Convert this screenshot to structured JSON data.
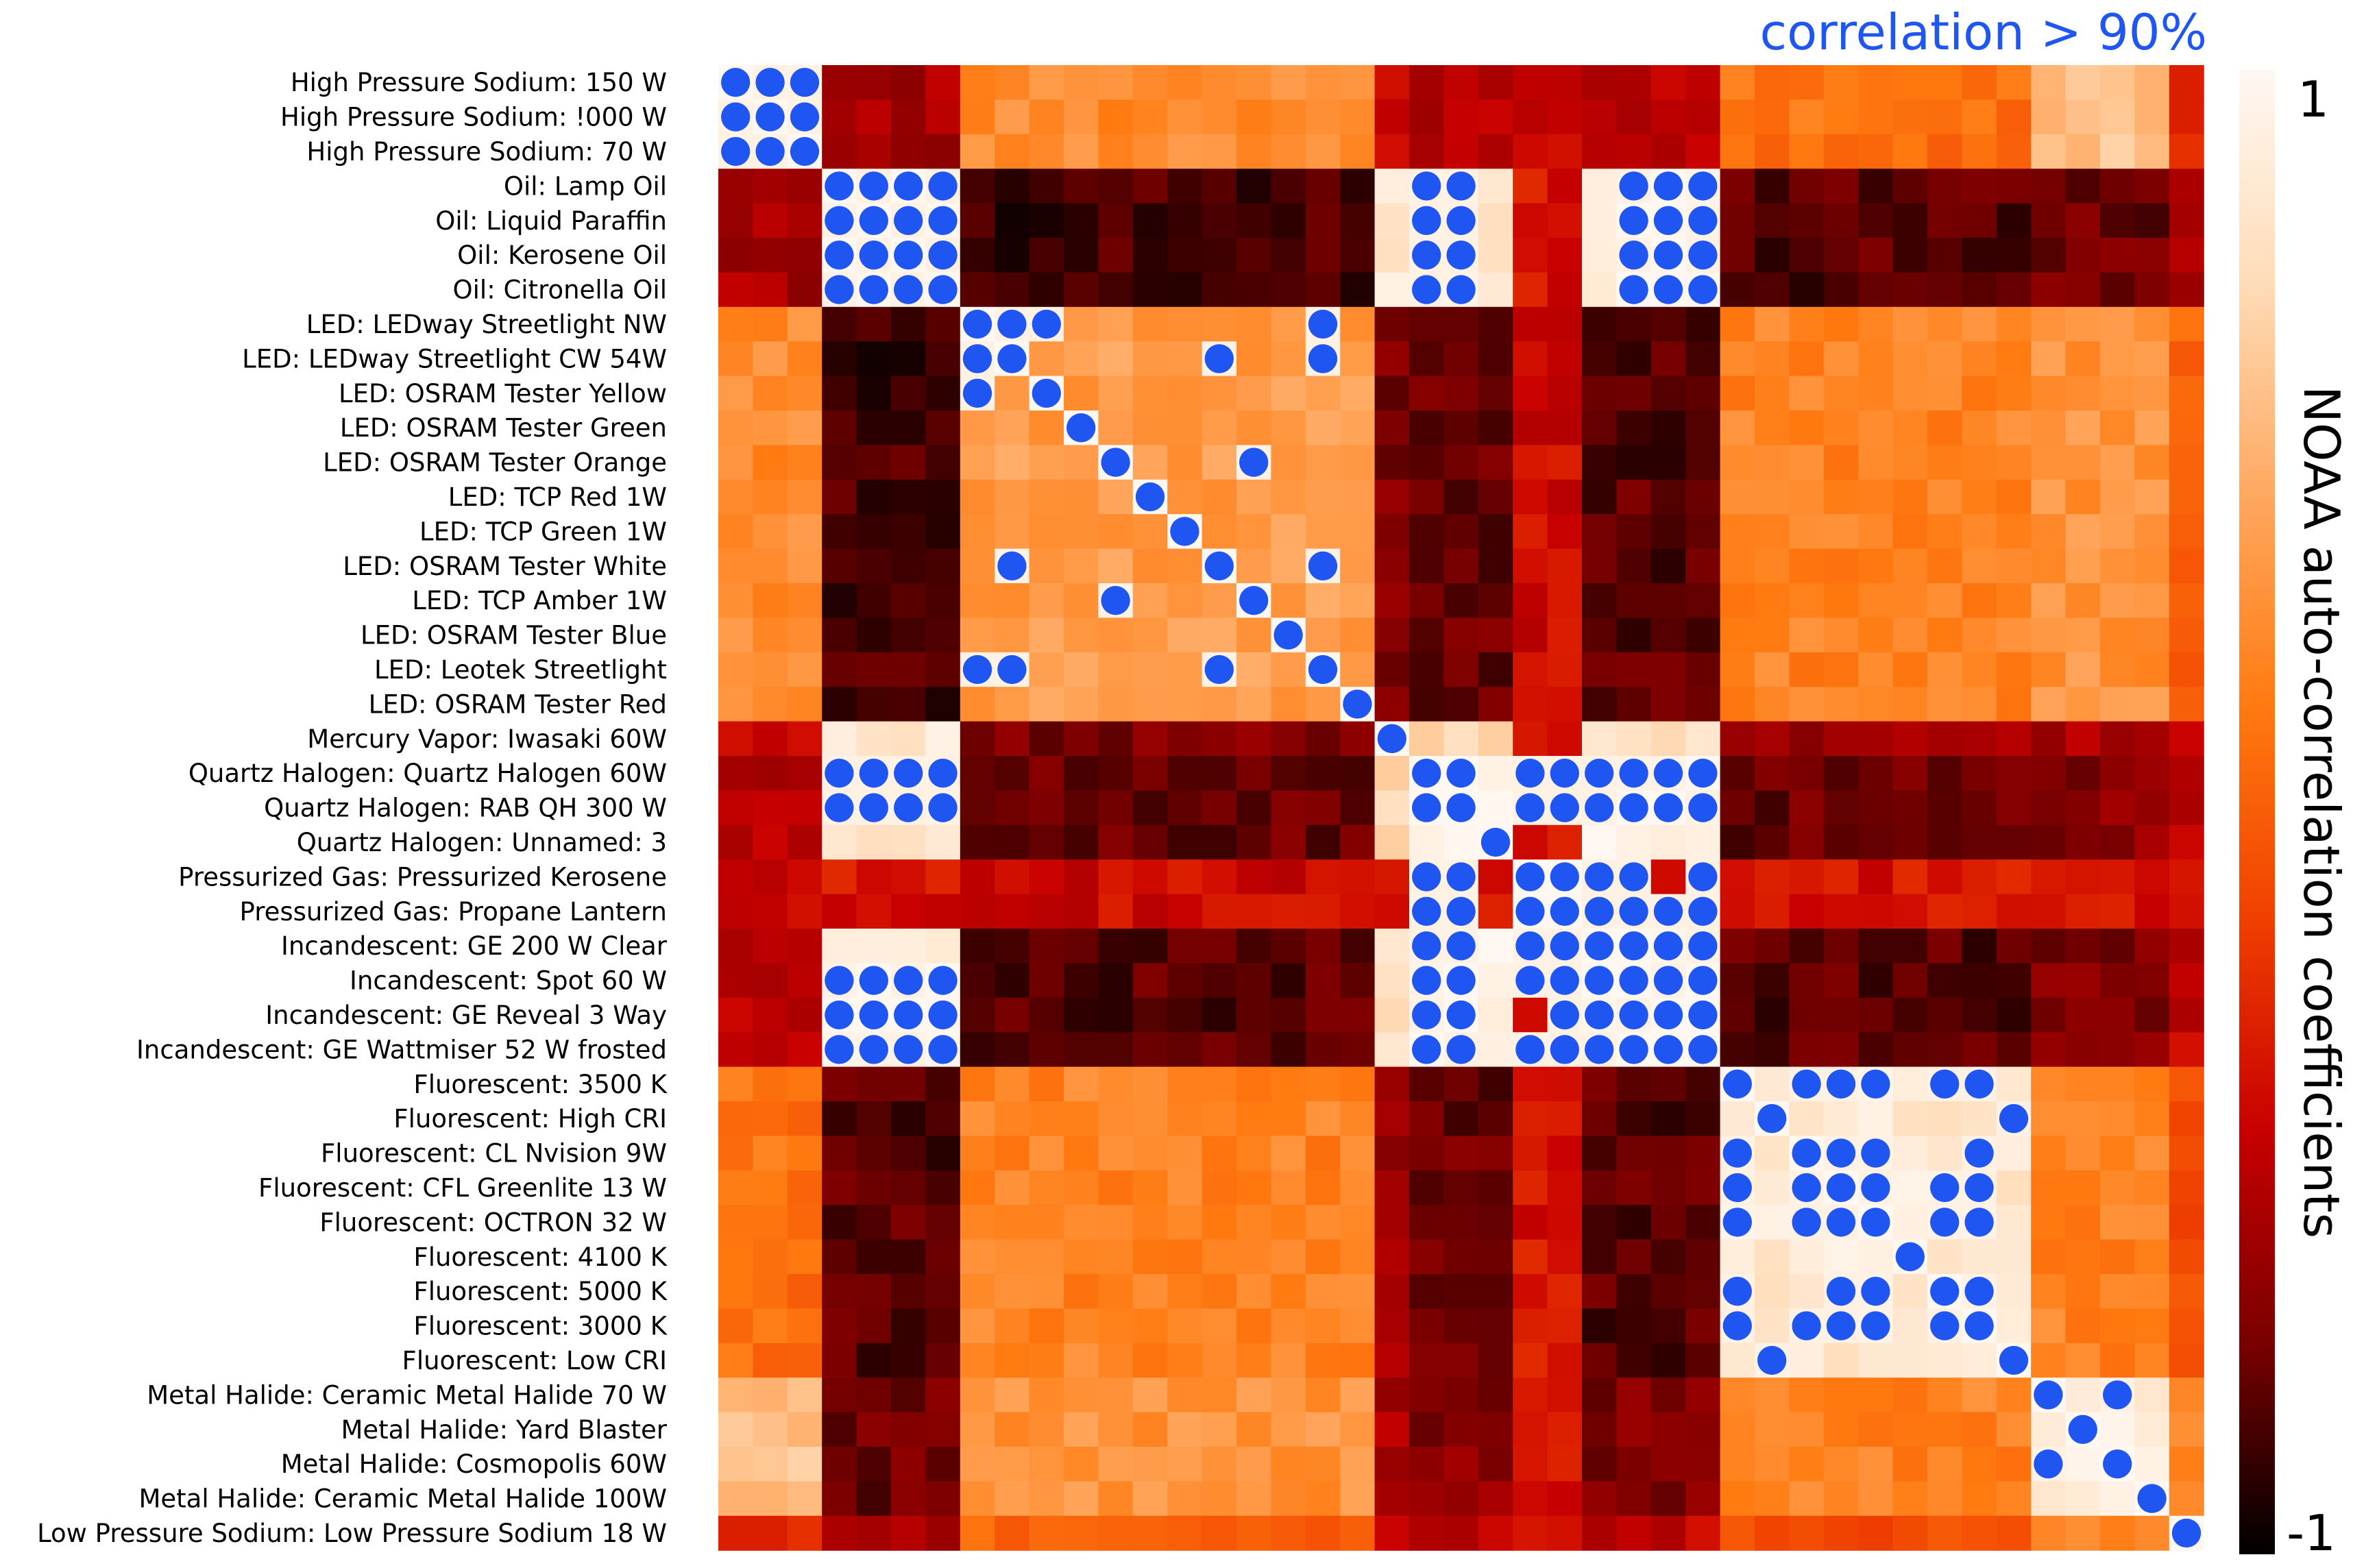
{
  "chart_data": {
    "type": "heatmap",
    "title": "correlation > 90%",
    "labels": [
      "High Pressure Sodium: 150 W",
      "High Pressure Sodium: !000 W",
      "High Pressure Sodium: 70 W",
      "Oil: Lamp Oil",
      "Oil: Liquid Paraffin",
      "Oil: Kerosene Oil",
      "Oil: Citronella Oil",
      "LED: LEDway Streetlight NW",
      "LED: LEDway Streetlight CW 54W",
      "LED: OSRAM Tester Yellow",
      "LED: OSRAM Tester Green",
      "LED: OSRAM Tester Orange",
      "LED: TCP Red 1W",
      "LED: TCP Green 1W",
      "LED: OSRAM Tester White",
      "LED: TCP Amber 1W",
      "LED: OSRAM Tester Blue",
      "LED: Leotek Streetlight",
      "LED: OSRAM Tester Red",
      "Mercury Vapor: Iwasaki 60W",
      "Quartz Halogen: Quartz Halogen 60W",
      "Quartz Halogen: RAB QH 300 W",
      "Quartz Halogen: Unnamed: 3",
      "Pressurized Gas: Pressurized Kerosene",
      "Pressurized Gas: Propane Lantern",
      "Incandescent: GE 200 W Clear",
      "Incandescent: Spot 60 W",
      "Incandescent: GE Reveal 3 Way",
      "Incandescent: GE Wattmiser 52 W frosted",
      "Fluorescent: 3500 K",
      "Fluorescent: High CRI",
      "Fluorescent: CL Nvision 9W",
      "Fluorescent: CFL Greenlite 13 W",
      "Fluorescent: OCTRON 32 W",
      "Fluorescent: 4100 K",
      "Fluorescent: 5000 K",
      "Fluorescent: 3000 K",
      "Fluorescent: Low CRI",
      "Metal Halide: Ceramic Metal Halide 70 W",
      "Metal Halide: Yard Blaster",
      "Metal Halide: Cosmopolis 60W",
      "Metal Halide: Ceramic Metal Halide 100W",
      "Low Pressure Sodium: Low Pressure Sodium 18 W"
    ],
    "group_sizes": [
      3,
      4,
      12,
      1,
      3,
      2,
      4,
      9,
      4,
      1
    ],
    "group_similarity": [
      [
        0.98,
        -0.55,
        0.25,
        -0.45,
        -0.5,
        -0.45,
        -0.5,
        0.1,
        0.55,
        -0.3
      ],
      [
        -0.55,
        0.98,
        -0.85,
        0.85,
        0.85,
        -0.35,
        0.95,
        -0.8,
        -0.75,
        -0.5
      ],
      [
        0.25,
        -0.85,
        0.35,
        -0.7,
        -0.75,
        -0.4,
        -0.8,
        0.2,
        0.3,
        0.0
      ],
      [
        -0.45,
        0.85,
        -0.7,
        1.0,
        0.7,
        -0.35,
        0.8,
        -0.6,
        -0.55,
        -0.4
      ],
      [
        -0.5,
        0.85,
        -0.75,
        0.7,
        0.98,
        -0.35,
        0.95,
        -0.75,
        -0.65,
        -0.45
      ],
      [
        -0.45,
        -0.35,
        -0.4,
        -0.35,
        -0.35,
        1.0,
        -0.35,
        -0.35,
        -0.35,
        -0.35
      ],
      [
        -0.5,
        0.95,
        -0.8,
        0.8,
        0.95,
        -0.35,
        0.98,
        -0.8,
        -0.7,
        -0.45
      ],
      [
        0.1,
        -0.8,
        0.2,
        -0.6,
        -0.75,
        -0.35,
        -0.8,
        0.85,
        0.2,
        -0.1
      ],
      [
        0.55,
        -0.75,
        0.3,
        -0.55,
        -0.65,
        -0.35,
        -0.7,
        0.2,
        0.85,
        0.2
      ],
      [
        -0.3,
        -0.5,
        0.0,
        -0.4,
        -0.45,
        -0.35,
        -0.45,
        -0.1,
        0.2,
        1.0
      ]
    ],
    "high_correlation_marks": [
      [
        0,
        0
      ],
      [
        0,
        1
      ],
      [
        0,
        2
      ],
      [
        1,
        0
      ],
      [
        1,
        1
      ],
      [
        1,
        2
      ],
      [
        2,
        0
      ],
      [
        2,
        1
      ],
      [
        2,
        2
      ],
      [
        3,
        3
      ],
      [
        3,
        4
      ],
      [
        3,
        5
      ],
      [
        3,
        6
      ],
      [
        4,
        3
      ],
      [
        4,
        4
      ],
      [
        4,
        5
      ],
      [
        4,
        6
      ],
      [
        5,
        3
      ],
      [
        5,
        4
      ],
      [
        5,
        5
      ],
      [
        5,
        6
      ],
      [
        6,
        3
      ],
      [
        6,
        4
      ],
      [
        6,
        5
      ],
      [
        6,
        6
      ],
      [
        3,
        20
      ],
      [
        3,
        21
      ],
      [
        4,
        20
      ],
      [
        4,
        21
      ],
      [
        5,
        20
      ],
      [
        5,
        21
      ],
      [
        6,
        20
      ],
      [
        6,
        21
      ],
      [
        3,
        26
      ],
      [
        3,
        27
      ],
      [
        3,
        28
      ],
      [
        4,
        26
      ],
      [
        4,
        27
      ],
      [
        4,
        28
      ],
      [
        5,
        26
      ],
      [
        5,
        27
      ],
      [
        5,
        28
      ],
      [
        6,
        26
      ],
      [
        6,
        27
      ],
      [
        6,
        28
      ],
      [
        20,
        3
      ],
      [
        20,
        4
      ],
      [
        20,
        5
      ],
      [
        20,
        6
      ],
      [
        21,
        3
      ],
      [
        21,
        4
      ],
      [
        21,
        5
      ],
      [
        21,
        6
      ],
      [
        26,
        3
      ],
      [
        26,
        4
      ],
      [
        26,
        5
      ],
      [
        26,
        6
      ],
      [
        27,
        3
      ],
      [
        27,
        4
      ],
      [
        27,
        5
      ],
      [
        27,
        6
      ],
      [
        28,
        3
      ],
      [
        28,
        4
      ],
      [
        28,
        5
      ],
      [
        28,
        6
      ],
      [
        7,
        7
      ],
      [
        7,
        8
      ],
      [
        7,
        9
      ],
      [
        7,
        17
      ],
      [
        8,
        7
      ],
      [
        8,
        8
      ],
      [
        8,
        14
      ],
      [
        8,
        17
      ],
      [
        9,
        7
      ],
      [
        9,
        9
      ],
      [
        10,
        10
      ],
      [
        11,
        11
      ],
      [
        11,
        15
      ],
      [
        12,
        12
      ],
      [
        13,
        13
      ],
      [
        14,
        8
      ],
      [
        14,
        14
      ],
      [
        14,
        17
      ],
      [
        15,
        11
      ],
      [
        15,
        15
      ],
      [
        16,
        16
      ],
      [
        17,
        7
      ],
      [
        17,
        8
      ],
      [
        17,
        14
      ],
      [
        17,
        17
      ],
      [
        18,
        18
      ],
      [
        19,
        19
      ],
      [
        20,
        20
      ],
      [
        20,
        21
      ],
      [
        20,
        23
      ],
      [
        20,
        24
      ],
      [
        20,
        25
      ],
      [
        20,
        26
      ],
      [
        20,
        27
      ],
      [
        20,
        28
      ],
      [
        21,
        20
      ],
      [
        21,
        21
      ],
      [
        21,
        23
      ],
      [
        21,
        24
      ],
      [
        21,
        25
      ],
      [
        21,
        26
      ],
      [
        21,
        27
      ],
      [
        21,
        28
      ],
      [
        22,
        22
      ],
      [
        23,
        20
      ],
      [
        23,
        21
      ],
      [
        23,
        23
      ],
      [
        23,
        24
      ],
      [
        23,
        25
      ],
      [
        23,
        26
      ],
      [
        23,
        28
      ],
      [
        24,
        20
      ],
      [
        24,
        21
      ],
      [
        24,
        23
      ],
      [
        24,
        24
      ],
      [
        24,
        25
      ],
      [
        24,
        26
      ],
      [
        24,
        27
      ],
      [
        24,
        28
      ],
      [
        25,
        20
      ],
      [
        25,
        21
      ],
      [
        25,
        23
      ],
      [
        25,
        24
      ],
      [
        25,
        25
      ],
      [
        25,
        26
      ],
      [
        25,
        27
      ],
      [
        25,
        28
      ],
      [
        26,
        20
      ],
      [
        26,
        21
      ],
      [
        26,
        23
      ],
      [
        26,
        24
      ],
      [
        26,
        25
      ],
      [
        26,
        26
      ],
      [
        26,
        27
      ],
      [
        26,
        28
      ],
      [
        27,
        20
      ],
      [
        27,
        21
      ],
      [
        27,
        24
      ],
      [
        27,
        25
      ],
      [
        27,
        26
      ],
      [
        27,
        27
      ],
      [
        27,
        28
      ],
      [
        28,
        20
      ],
      [
        28,
        21
      ],
      [
        28,
        23
      ],
      [
        28,
        24
      ],
      [
        28,
        25
      ],
      [
        28,
        26
      ],
      [
        28,
        27
      ],
      [
        28,
        28
      ],
      [
        29,
        29
      ],
      [
        29,
        31
      ],
      [
        29,
        32
      ],
      [
        29,
        33
      ],
      [
        29,
        35
      ],
      [
        29,
        36
      ],
      [
        30,
        30
      ],
      [
        30,
        37
      ],
      [
        31,
        29
      ],
      [
        31,
        31
      ],
      [
        31,
        32
      ],
      [
        31,
        33
      ],
      [
        31,
        36
      ],
      [
        32,
        29
      ],
      [
        32,
        31
      ],
      [
        32,
        32
      ],
      [
        32,
        33
      ],
      [
        32,
        35
      ],
      [
        32,
        36
      ],
      [
        33,
        29
      ],
      [
        33,
        31
      ],
      [
        33,
        32
      ],
      [
        33,
        33
      ],
      [
        33,
        35
      ],
      [
        33,
        36
      ],
      [
        34,
        34
      ],
      [
        35,
        29
      ],
      [
        35,
        32
      ],
      [
        35,
        33
      ],
      [
        35,
        35
      ],
      [
        35,
        36
      ],
      [
        36,
        29
      ],
      [
        36,
        31
      ],
      [
        36,
        32
      ],
      [
        36,
        33
      ],
      [
        36,
        35
      ],
      [
        36,
        36
      ],
      [
        37,
        30
      ],
      [
        37,
        37
      ],
      [
        38,
        38
      ],
      [
        38,
        40
      ],
      [
        39,
        39
      ],
      [
        40,
        38
      ],
      [
        40,
        40
      ],
      [
        41,
        41
      ],
      [
        42,
        42
      ]
    ],
    "colorbar": {
      "label": "NOAA auto-correlation coefficients",
      "vmin": -1,
      "vmax": 1,
      "tick_max_label": "1",
      "tick_min_label": "-1",
      "colormap": [
        "#000000",
        "#7a0000",
        "#c80000",
        "#f04000",
        "#ff7a10",
        "#ffa860",
        "#ffdcb8",
        "#fff8f2"
      ]
    },
    "marker_color": "#1f55f0",
    "title_color": "#1f55f0"
  }
}
